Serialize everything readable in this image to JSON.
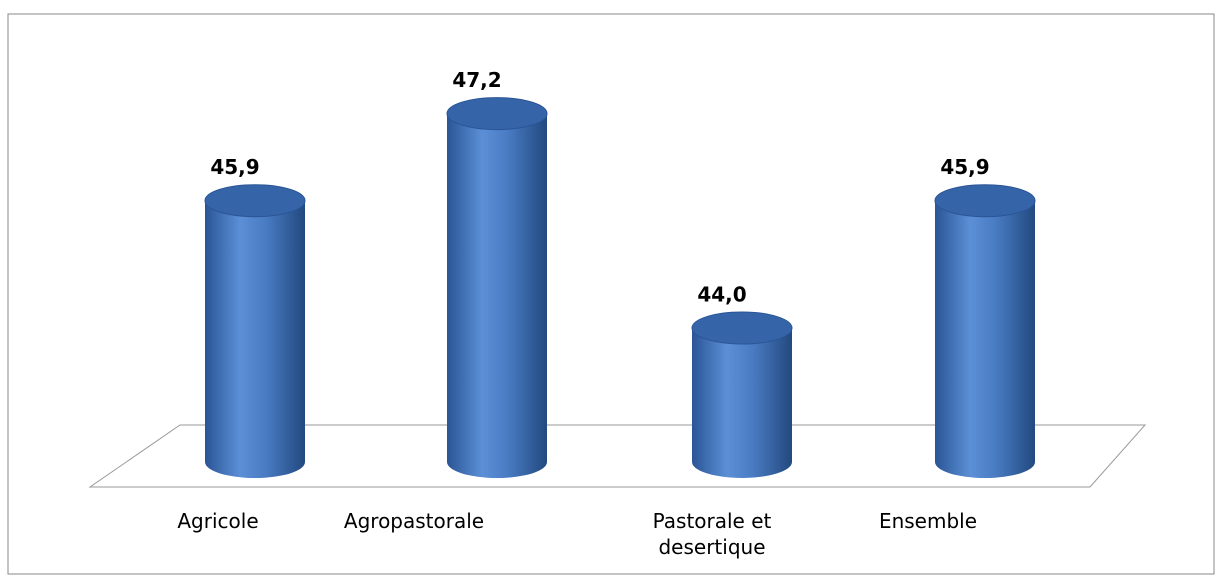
{
  "chart_data": {
    "type": "bar3d",
    "categories": [
      "Agricole",
      "Agropastorale",
      "Pastorale et desertique",
      "Ensemble"
    ],
    "values": [
      45.9,
      47.2,
      44.0,
      45.9
    ],
    "value_labels": [
      "45,9",
      "47,2",
      "44,0",
      "45,9"
    ],
    "color": "#4a7cc4",
    "ylim": [
      42,
      48
    ]
  }
}
